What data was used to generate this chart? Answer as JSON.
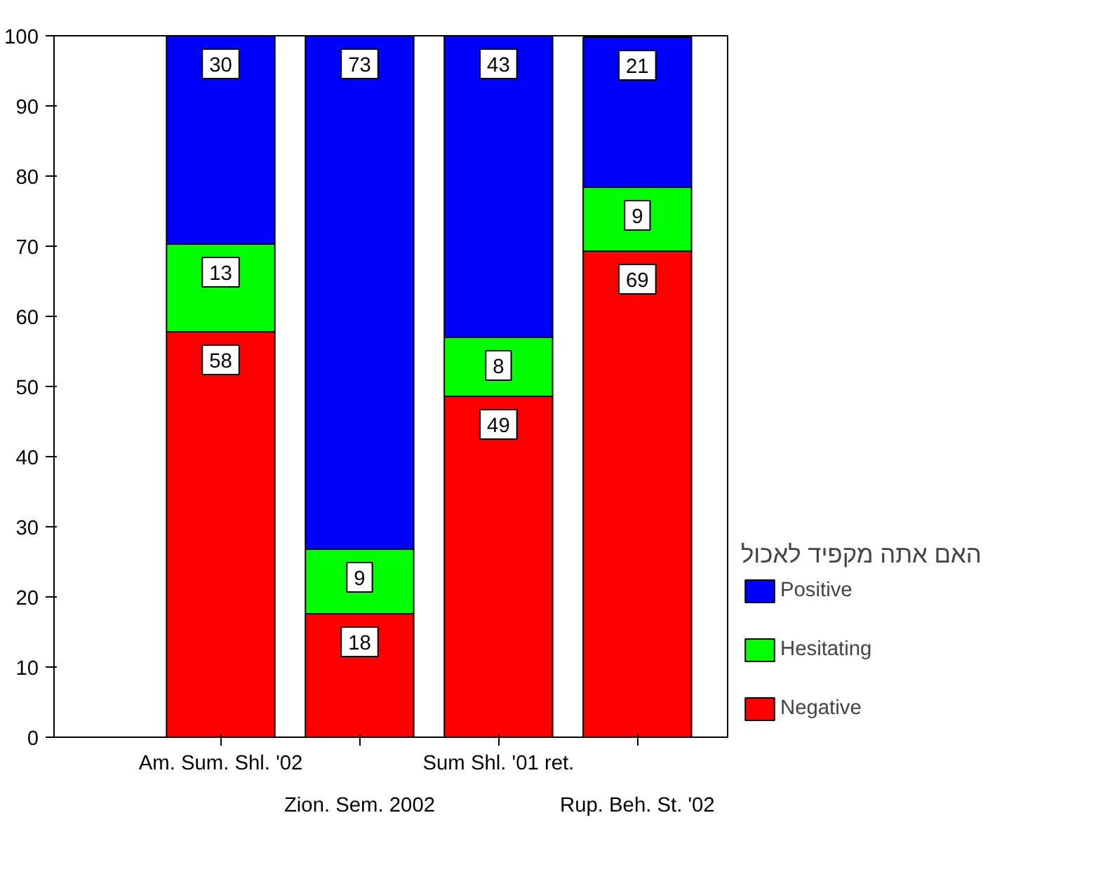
{
  "chart_data": {
    "type": "bar",
    "stacked": true,
    "categories": [
      "Am. Sum. Shl. '02",
      "Zion. Sem. 2002",
      "Sum Shl. '01 ret.",
      "Rup. Beh. St. '02"
    ],
    "series": [
      {
        "name": "Negative",
        "color": "#ff0000",
        "values": [
          57.8,
          17.6,
          48.6,
          69.3
        ],
        "value_labels": [
          "58",
          "18",
          "49",
          "69"
        ]
      },
      {
        "name": "Hesitating",
        "color": "#00ff00",
        "values": [
          12.5,
          9.2,
          8.4,
          9.1
        ],
        "value_labels": [
          "13",
          "9",
          "8",
          "9"
        ]
      },
      {
        "name": "Positive",
        "color": "#0000ff",
        "values": [
          29.7,
          73.2,
          43.0,
          21.4
        ],
        "value_labels": [
          "30",
          "73",
          "43",
          "21"
        ]
      }
    ],
    "ylim": [
      0,
      100
    ],
    "yticks": [
      0,
      10,
      20,
      30,
      40,
      50,
      60,
      70,
      80,
      90,
      100
    ],
    "legend_title": "האם אתה מקפיד לאכול",
    "legend": "right",
    "grid": false
  }
}
